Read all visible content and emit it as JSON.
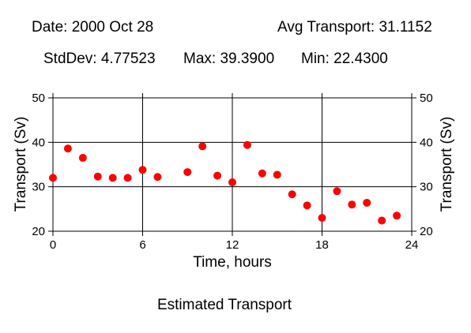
{
  "header": {
    "date": "Date: 2000 Oct 28",
    "avg": "Avg Transport: 31.1152",
    "stddev": "StdDev: 4.77523",
    "max": "Max: 39.3900",
    "min": "Min: 22.4300"
  },
  "chart_data": {
    "type": "scatter",
    "title": "Estimated Transport",
    "xlabel": "Time, hours",
    "ylabel": "Transport (Sv)",
    "ylabel_right": "Transport (Sv)",
    "xlim": [
      0,
      24
    ],
    "ylim": [
      20,
      50
    ],
    "xticks": [
      0,
      6,
      12,
      18,
      24
    ],
    "yticks": [
      20,
      30,
      40,
      50
    ],
    "grid": true,
    "marker_color": "#ff0000",
    "x": [
      0,
      1,
      2,
      3,
      4,
      5,
      6,
      7,
      9,
      10,
      11,
      12,
      13,
      14,
      15,
      16,
      17,
      18,
      19,
      20,
      21,
      22,
      23
    ],
    "y": [
      32.0,
      38.6,
      36.5,
      32.3,
      32.0,
      32.0,
      33.8,
      32.2,
      33.3,
      39.1,
      32.5,
      31.0,
      39.4,
      33.0,
      32.7,
      28.3,
      25.8,
      23.0,
      29.0,
      26.0,
      26.4,
      22.4,
      23.5
    ]
  }
}
